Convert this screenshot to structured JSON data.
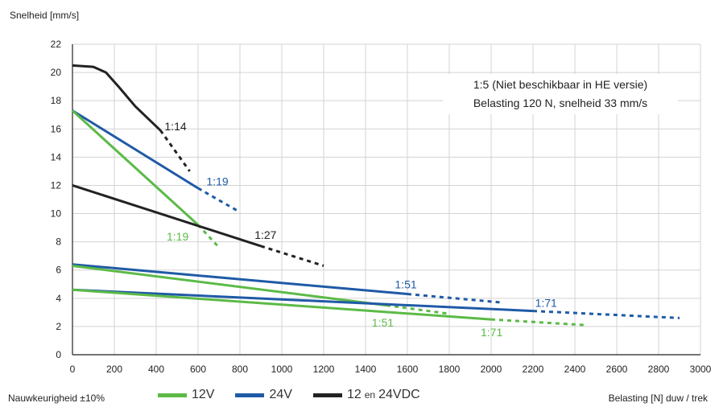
{
  "chart_data": {
    "type": "line",
    "ylabel": "Snelheid [mm/s]",
    "xlabel": "Belasting [N] duw / trek",
    "xlim": [
      0,
      3000
    ],
    "ylim": [
      0,
      22
    ],
    "x_ticks": [
      0,
      200,
      400,
      600,
      800,
      1000,
      1200,
      1400,
      1600,
      1800,
      2000,
      2200,
      2400,
      2600,
      2800,
      3000
    ],
    "y_ticks": [
      0,
      2,
      4,
      6,
      8,
      10,
      12,
      14,
      16,
      18,
      20,
      22
    ],
    "grid": true,
    "legend": [
      {
        "label": "12V",
        "color": "#5cba47"
      },
      {
        "label": "24V",
        "color": "#1f5aa6"
      },
      {
        "label": "12 en 24VDC",
        "label_main": "12",
        "label_small": "en",
        "label_end": "24VDC",
        "color": "#222222"
      }
    ],
    "series": [
      {
        "label": "1:14",
        "color": "#222222",
        "solid": [
          [
            0,
            20.5
          ],
          [
            100,
            20.4
          ],
          [
            160,
            20.0
          ],
          [
            220,
            19.0
          ],
          [
            300,
            17.6
          ],
          [
            420,
            15.9
          ]
        ],
        "dashed": [
          [
            420,
            15.9
          ],
          [
            560,
            13.0
          ]
        ]
      },
      {
        "label": "1:19",
        "color": "#1f5aa6",
        "solid": [
          [
            0,
            17.3
          ],
          [
            600,
            11.8
          ]
        ],
        "dashed": [
          [
            600,
            11.8
          ],
          [
            800,
            10.1
          ]
        ]
      },
      {
        "label": "1:19",
        "color": "#5cba47",
        "solid": [
          [
            0,
            17.3
          ],
          [
            600,
            9.2
          ]
        ],
        "dashed": [
          [
            600,
            9.2
          ],
          [
            700,
            7.6
          ]
        ]
      },
      {
        "label": "1:27",
        "color": "#222222",
        "solid": [
          [
            0,
            12.0
          ],
          [
            900,
            7.7
          ]
        ],
        "dashed": [
          [
            900,
            7.7
          ],
          [
            1200,
            6.3
          ]
        ]
      },
      {
        "label": "1:51",
        "color": "#1f5aa6",
        "solid": [
          [
            0,
            6.4
          ],
          [
            1600,
            4.3
          ]
        ],
        "dashed": [
          [
            1600,
            4.3
          ],
          [
            2050,
            3.7
          ]
        ]
      },
      {
        "label": "1:51",
        "color": "#5cba47",
        "solid": [
          [
            0,
            6.3
          ],
          [
            1500,
            3.5
          ]
        ],
        "dashed": [
          [
            1500,
            3.5
          ],
          [
            1800,
            2.9
          ]
        ]
      },
      {
        "label": "1:71",
        "color": "#1f5aa6",
        "solid": [
          [
            0,
            4.6
          ],
          [
            2200,
            3.1
          ]
        ],
        "dashed": [
          [
            2200,
            3.1
          ],
          [
            2900,
            2.6
          ]
        ]
      },
      {
        "label": "1:71",
        "color": "#5cba47",
        "solid": [
          [
            0,
            4.6
          ],
          [
            2000,
            2.5
          ]
        ],
        "dashed": [
          [
            2000,
            2.5
          ],
          [
            2450,
            2.1
          ]
        ]
      }
    ],
    "series_labels": [
      {
        "text": "1:14",
        "color": "#222222",
        "x": 440,
        "y": 15.9
      },
      {
        "text": "1:19",
        "color": "#1f5aa6",
        "x": 640,
        "y": 12.0
      },
      {
        "text": "1:19",
        "color": "#5cba47",
        "x": 450,
        "y": 8.1
      },
      {
        "text": "1:27",
        "color": "#222222",
        "x": 870,
        "y": 8.2
      },
      {
        "text": "1:51",
        "color": "#1f5aa6",
        "x": 1540,
        "y": 4.7
      },
      {
        "text": "1:51",
        "color": "#5cba47",
        "x": 1430,
        "y": 2.0
      },
      {
        "text": "1:71",
        "color": "#1f5aa6",
        "x": 2210,
        "y": 3.4
      },
      {
        "text": "1:71",
        "color": "#5cba47",
        "x": 1950,
        "y": 1.3
      }
    ],
    "annotation": [
      "1:5 (Niet beschikbaar in HE versie)",
      "Belasting 120 N, snelheid 33 mm/s"
    ]
  },
  "footer": {
    "accuracy": "Nauwkeurigheid ±10%"
  }
}
